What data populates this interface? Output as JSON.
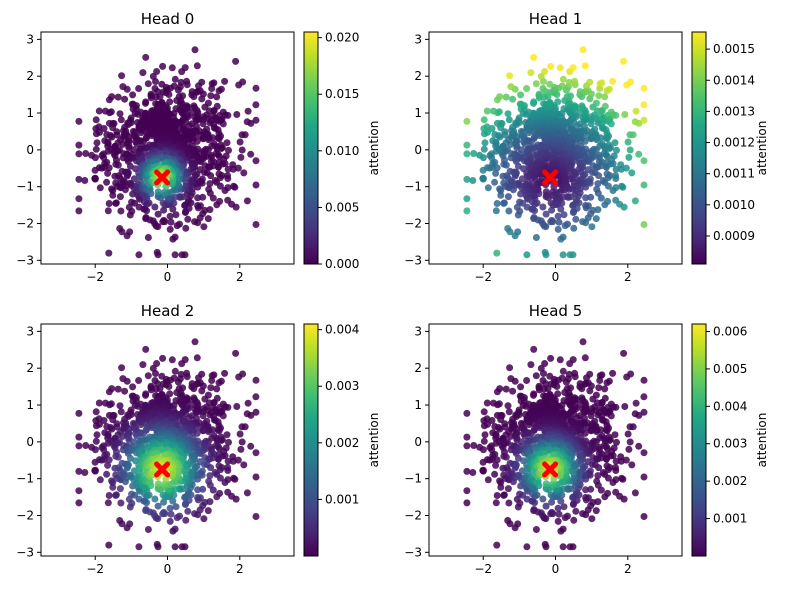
{
  "chart_data": [
    {
      "type": "scatter",
      "title": "Head 0",
      "xlim": [
        -3.5,
        3.5
      ],
      "ylim": [
        -3.1,
        3.2
      ],
      "xticks": [
        -2,
        0,
        2
      ],
      "xtick_labels": [
        "−2",
        "0",
        "2"
      ],
      "yticks": [
        -3,
        -2,
        -1,
        0,
        1,
        2,
        3
      ],
      "ytick_labels": [
        "−3",
        "−2",
        "−1",
        "0",
        "1",
        "2",
        "3"
      ],
      "query_point": {
        "x": -0.15,
        "y": -0.75
      },
      "focus_width": 0.35,
      "colorbar": {
        "label": "attention",
        "range": [
          0.0,
          0.0205
        ],
        "ticks": [
          0.0,
          0.005,
          0.01,
          0.015,
          0.02
        ],
        "tick_labels": [
          "0.000",
          "0.005",
          "0.010",
          "0.015",
          "0.020"
        ]
      }
    },
    {
      "type": "scatter",
      "title": "Head 1",
      "xlim": [
        -3.5,
        3.5
      ],
      "ylim": [
        -3.1,
        3.2
      ],
      "xticks": [
        -2,
        0,
        2
      ],
      "xtick_labels": [
        "−2",
        "0",
        "2"
      ],
      "yticks": [
        -3,
        -2,
        -1,
        0,
        1,
        2,
        3
      ],
      "ytick_labels": [
        "−3",
        "−2",
        "−1",
        "0",
        "1",
        "2",
        "3"
      ],
      "query_point": {
        "x": -0.15,
        "y": -0.75
      },
      "focus_width": -1,
      "colorbar": {
        "label": "attention",
        "range": [
          0.00081,
          0.001555
        ],
        "ticks": [
          0.0009,
          0.001,
          0.0011,
          0.0012,
          0.0013,
          0.0014,
          0.0015
        ],
        "tick_labels": [
          "0.0009",
          "0.0010",
          "0.0011",
          "0.0012",
          "0.0013",
          "0.0014",
          "0.0015"
        ]
      }
    },
    {
      "type": "scatter",
      "title": "Head 2",
      "xlim": [
        -3.5,
        3.5
      ],
      "ylim": [
        -3.1,
        3.2
      ],
      "xticks": [
        -2,
        0,
        2
      ],
      "xtick_labels": [
        "−2",
        "0",
        "2"
      ],
      "yticks": [
        -3,
        -2,
        -1,
        0,
        1,
        2,
        3
      ],
      "ytick_labels": [
        "−3",
        "−2",
        "−1",
        "0",
        "1",
        "2",
        "3"
      ],
      "query_point": {
        "x": -0.15,
        "y": -0.75
      },
      "focus_width": 0.65,
      "colorbar": {
        "label": "attention",
        "range": [
          0.0,
          0.0041
        ],
        "ticks": [
          0.001,
          0.002,
          0.003,
          0.004
        ],
        "tick_labels": [
          "0.001",
          "0.002",
          "0.003",
          "0.004"
        ]
      }
    },
    {
      "type": "scatter",
      "title": "Head 5",
      "xlim": [
        -3.5,
        3.5
      ],
      "ylim": [
        -3.1,
        3.2
      ],
      "xticks": [
        -2,
        0,
        2
      ],
      "xtick_labels": [
        "−2",
        "0",
        "2"
      ],
      "yticks": [
        -3,
        -2,
        -1,
        0,
        1,
        2,
        3
      ],
      "ytick_labels": [
        "−3",
        "−2",
        "−1",
        "0",
        "1",
        "2",
        "3"
      ],
      "query_point": {
        "x": -0.15,
        "y": -0.75
      },
      "focus_width": 0.5,
      "colorbar": {
        "label": "attention",
        "range": [
          0.0,
          0.0062
        ],
        "ticks": [
          0.001,
          0.002,
          0.003,
          0.004,
          0.005,
          0.006
        ],
        "tick_labels": [
          "0.001",
          "0.002",
          "0.003",
          "0.004",
          "0.005",
          "0.006"
        ]
      }
    }
  ]
}
